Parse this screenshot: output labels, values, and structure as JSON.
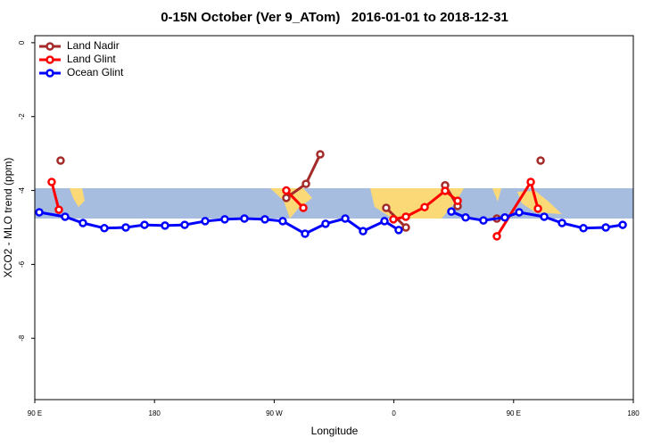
{
  "chart_data": {
    "type": "line",
    "title": "0-15N October (Ver 9_ATom)   2016-01-01 to 2018-12-31",
    "x_label": "Longitude",
    "y_label": "XCO2 - MLO trend (ppm)",
    "xlim": [
      90,
      540
    ],
    "ylim": [
      -9.66,
      0.19
    ],
    "xticks": [
      {
        "value": 90,
        "label": "90 E"
      },
      {
        "value": 180,
        "label": "180"
      },
      {
        "value": 270,
        "label": "90 W"
      },
      {
        "value": 360,
        "label": "0"
      },
      {
        "value": 450,
        "label": "90 E"
      },
      {
        "value": 540,
        "label": "180"
      }
    ],
    "yticks": [
      0,
      -2,
      -4,
      -6,
      -8
    ],
    "legend": "top-left",
    "series": [
      {
        "name": "Land Nadir",
        "color": "#a52a2a",
        "x": [
          109.4,
          null,
          279.1,
          293.9,
          304.6,
          null,
          354.2,
          369,
          null,
          398.5,
          407.9,
          null,
          437.4,
          null,
          470.3
        ],
        "values": [
          -3.19,
          null,
          -4.2,
          -3.82,
          -3.02,
          null,
          -4.47,
          -5.0,
          null,
          -3.86,
          -4.42,
          null,
          -4.76,
          null,
          -3.19
        ]
      },
      {
        "name": "Land Glint",
        "color": "#ff0000",
        "x": [
          102.7,
          108.1,
          null,
          279.1,
          291.9,
          null,
          359.6,
          369,
          383.1,
          398.5,
          407.9,
          null,
          437.4,
          462.9,
          468.3
        ],
        "values": [
          -3.77,
          -4.52,
          null,
          -4.0,
          -4.47,
          null,
          -4.78,
          -4.71,
          -4.45,
          -4.01,
          -4.28,
          null,
          -5.24,
          -3.77,
          -4.49
        ]
      },
      {
        "name": "Ocean Glint",
        "color": "#0000ff",
        "x": [
          93.4,
          112.8,
          126.2,
          142.3,
          158.4,
          172.5,
          187.9,
          202.7,
          218.1,
          232.8,
          247.6,
          263,
          276.4,
          293.2,
          308.6,
          323.4,
          336.8,
          352.9,
          363.6,
          null,
          403.2,
          413.9,
          427.3,
          443.4,
          454.2,
          473,
          486.4,
          502.5,
          519.3,
          532
        ],
        "values": [
          -4.59,
          -4.71,
          -4.88,
          -5.02,
          -5.0,
          -4.93,
          -4.95,
          -4.93,
          -4.83,
          -4.78,
          -4.76,
          -4.78,
          -4.83,
          -5.17,
          -4.9,
          -4.76,
          -5.1,
          -4.83,
          -5.07,
          null,
          -4.57,
          -4.73,
          -4.81,
          -4.73,
          -4.59,
          -4.71,
          -4.88,
          -5.02,
          -5.0,
          -4.93
        ]
      }
    ]
  }
}
